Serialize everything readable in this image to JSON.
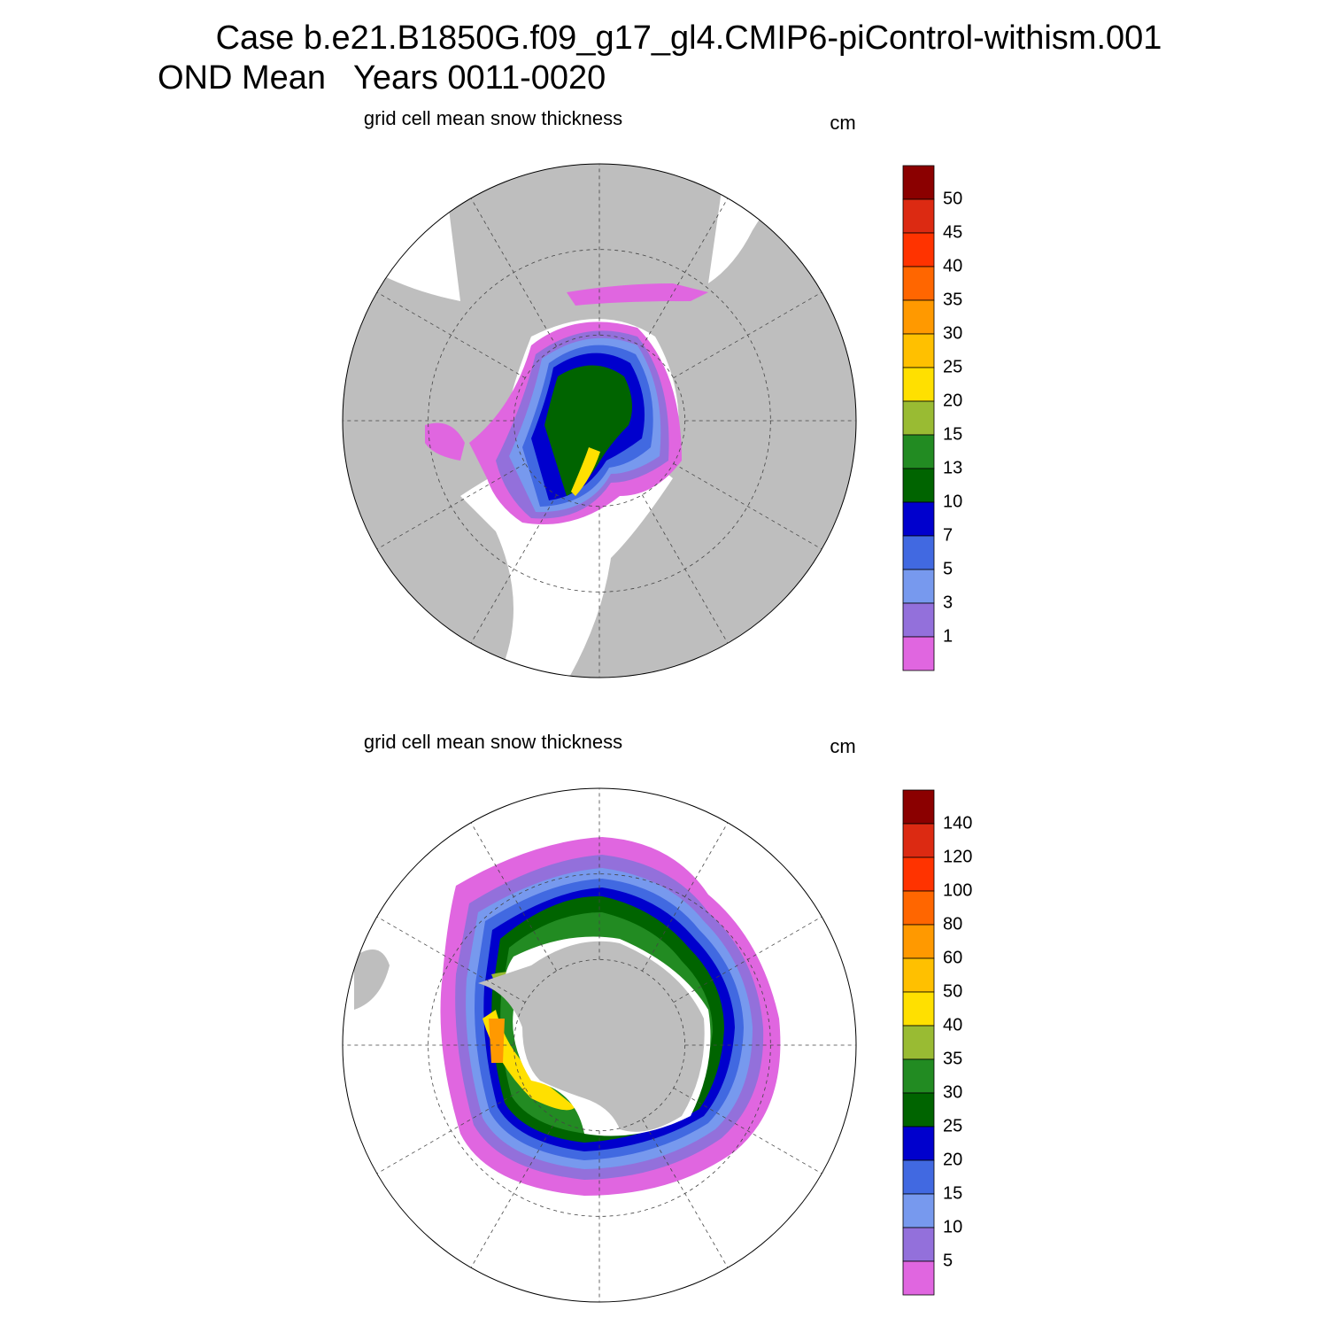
{
  "header": {
    "title_line1": "Case b.e21.B1850G.f09_g17_gl4.CMIP6-piControl-withism.001",
    "title_line2": "OND Mean   Years 0011-0020"
  },
  "panels": [
    {
      "title": "grid cell mean snow thickness",
      "units": "cm",
      "colorbar": {
        "levels": [
          50,
          45,
          40,
          35,
          30,
          25,
          20,
          15,
          13,
          10,
          7,
          5,
          3,
          1
        ],
        "colors": [
          "#8b0000",
          "#dc2a12",
          "#ff3300",
          "#ff6600",
          "#ff9900",
          "#ffc000",
          "#ffe000",
          "#99bb33",
          "#228b22",
          "#006400",
          "#0000cd",
          "#4169e1",
          "#7799ee",
          "#9370db",
          "#e066e0"
        ]
      }
    },
    {
      "title": "grid cell mean snow thickness",
      "units": "cm",
      "colorbar": {
        "levels": [
          140,
          120,
          100,
          80,
          60,
          50,
          40,
          35,
          30,
          25,
          20,
          15,
          10,
          5
        ],
        "colors": [
          "#8b0000",
          "#dc2a12",
          "#ff3300",
          "#ff6600",
          "#ff9900",
          "#ffc000",
          "#ffe000",
          "#99bb33",
          "#228b22",
          "#006400",
          "#0000cd",
          "#4169e1",
          "#7799ee",
          "#9370db",
          "#e066e0"
        ]
      }
    }
  ]
}
